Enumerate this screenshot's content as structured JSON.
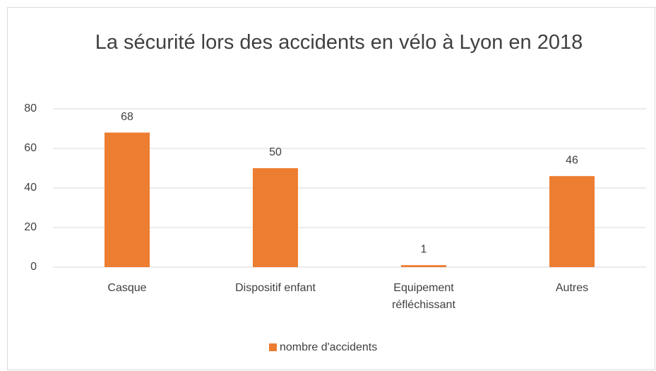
{
  "chart_data": {
    "type": "bar",
    "title": "La sécurité lors des accidents en vélo à Lyon en 2018",
    "categories": [
      "Casque",
      "Dispositif enfant",
      "Equipement réfléchissant",
      "Autres"
    ],
    "series": [
      {
        "name": "nombre d'accidents",
        "color": "#ed7d31",
        "values": [
          68,
          50,
          1,
          46
        ]
      }
    ],
    "ylim": [
      0,
      80
    ],
    "yticks": [
      0,
      20,
      40,
      60,
      80
    ],
    "grid": true,
    "legend": "bottom"
  }
}
